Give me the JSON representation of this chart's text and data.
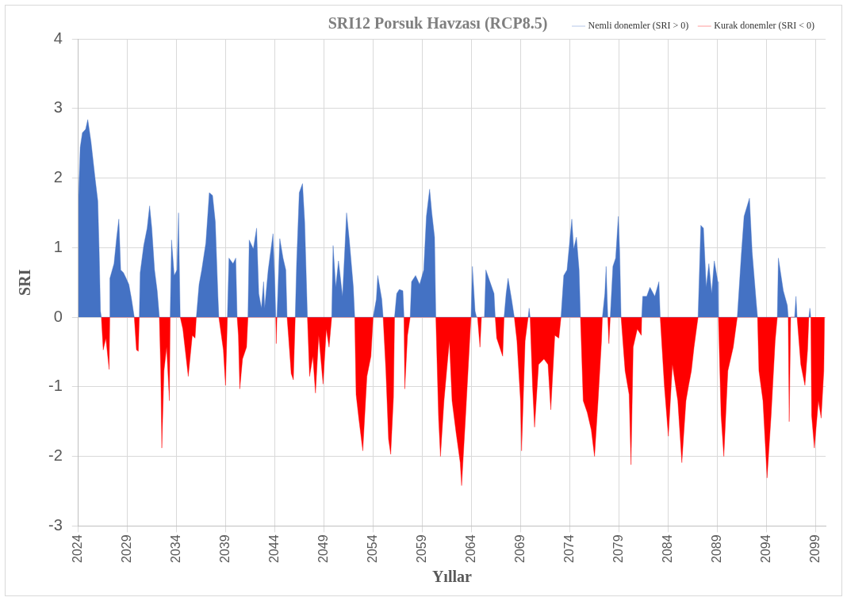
{
  "chart_data": {
    "type": "area",
    "title": "SRI12 Porsuk Havzası (RCP8.5)",
    "xlabel": "Yıllar",
    "ylabel": "SRI",
    "xlim": [
      2024,
      2100
    ],
    "xticks": [
      2024,
      2029,
      2034,
      2039,
      2044,
      2049,
      2054,
      2059,
      2064,
      2069,
      2074,
      2079,
      2084,
      2089,
      2094,
      2099
    ],
    "ylim": [
      -3,
      4
    ],
    "yticks": [
      -3,
      -2,
      -1,
      0,
      1,
      2,
      3,
      4
    ],
    "grid": true,
    "legend": "top right",
    "series": [
      {
        "name": "Nemli donemler (SRI > 0)",
        "color": "#4472c4",
        "x": [
          2024.02,
          2024.19,
          2024.41,
          2024.74,
          2024.96,
          2025.29,
          2025.7,
          2025.98,
          2026.12,
          2026.25,
          2026.34,
          2027.2,
          2027.21,
          2027.63,
          2027.9,
          2028.12,
          2028.31,
          2028.59,
          2028.86,
          2029.14,
          2029.41,
          2029.69,
          2030.2,
          2030.29,
          2030.65,
          2031.0,
          2031.25,
          2031.47,
          2031.75,
          2032.02,
          2032.24,
          2033.34,
          2033.48,
          2033.75,
          2034.03,
          2034.19,
          2034.3,
          2034.36,
          2036.0,
          2036.28,
          2036.55,
          2036.97,
          2037.32,
          2037.65,
          2037.93,
          2038.2,
          2038.29,
          2039.16,
          2039.32,
          2039.73,
          2040.01,
          2040.15,
          2041.25,
          2041.38,
          2041.8,
          2042.13,
          2042.35,
          2042.62,
          2042.84,
          2042.95,
          2043.31,
          2043.8,
          2044.0,
          2044.08,
          2044.2,
          2044.49,
          2044.82,
          2045.1,
          2045.23,
          2046.06,
          2046.2,
          2046.47,
          2046.8,
          2047.02,
          2047.24,
          2047.3,
          2049.77,
          2049.91,
          2050.18,
          2050.46,
          2050.87,
          2051.15,
          2051.28,
          2051.56,
          2051.97,
          2052.11,
          2053.98,
          2054.31,
          2054.45,
          2054.86,
          2055.0,
          2056.16,
          2056.38,
          2056.65,
          2057.01,
          2057.12,
          2057.75,
          2057.89,
          2058.3,
          2058.71,
          2059.13,
          2059.4,
          2059.73,
          2059.95,
          2060.23,
          2060.36,
          2063.94,
          2064.08,
          2064.35,
          2064.5,
          2065.3,
          2065.45,
          2065.86,
          2066.28,
          2066.4,
          2067.3,
          2067.51,
          2067.71,
          2068.06,
          2068.34,
          2069.75,
          2069.85,
          2069.95,
          2073.09,
          2073.37,
          2073.7,
          2074.19,
          2074.38,
          2074.66,
          2074.93,
          2075.07,
          2077.3,
          2077.55,
          2077.68,
          2077.85,
          2078.1,
          2078.37,
          2078.65,
          2078.92,
          2079.06,
          2079.2,
          2081.3,
          2081.4,
          2081.81,
          2082.14,
          2082.63,
          2083.05,
          2083.18,
          2087.03,
          2087.31,
          2087.58,
          2087.86,
          2088.13,
          2088.41,
          2088.68,
          2089.04,
          2089.1,
          2091.02,
          2091.43,
          2091.71,
          2092.26,
          2092.53,
          2092.95,
          2093.08,
          2095.09,
          2095.2,
          2095.7,
          2096.11,
          2096.2,
          2096.85,
          2096.99,
          2097.1,
          2098.3,
          2098.4,
          2098.5
        ],
        "values": [
          1.75,
          2.44,
          2.65,
          2.7,
          2.84,
          2.52,
          2.0,
          1.67,
          0.94,
          0.09,
          0,
          0,
          0.56,
          0.77,
          1.15,
          1.41,
          0.68,
          0.64,
          0.56,
          0.47,
          0.26,
          0,
          0,
          0.64,
          1.03,
          1.28,
          1.6,
          1.28,
          0.68,
          0.38,
          0,
          0,
          1.11,
          0.6,
          0.68,
          1.5,
          0.51,
          0,
          0,
          0.47,
          0.68,
          1.07,
          1.79,
          1.75,
          1.37,
          0.3,
          0,
          0,
          0.85,
          0.77,
          0.85,
          0,
          0,
          1.11,
          0.98,
          1.28,
          0.34,
          0.13,
          0.51,
          0.13,
          0.68,
          1.2,
          0.43,
          0,
          0,
          1.13,
          0.85,
          0.68,
          0,
          0,
          0.77,
          1.79,
          1.92,
          1.37,
          0.3,
          0,
          0,
          1.03,
          0.43,
          0.81,
          0.3,
          1.11,
          1.5,
          1.11,
          0.43,
          0,
          0,
          0.26,
          0.6,
          0.26,
          0,
          0,
          0.34,
          0.4,
          0.38,
          0,
          0,
          0.51,
          0.6,
          0.47,
          0.68,
          1.45,
          1.84,
          1.5,
          1.15,
          0,
          0,
          0.73,
          0.09,
          0,
          0,
          0.68,
          0.51,
          0.34,
          0,
          0,
          0.34,
          0.56,
          0.26,
          0,
          0,
          0.13,
          0,
          0,
          0.6,
          0.68,
          1.41,
          0.98,
          1.15,
          0.68,
          0,
          0,
          0.34,
          0.73,
          0,
          0,
          0.73,
          0.85,
          1.45,
          0.94,
          0,
          0,
          0.3,
          0.3,
          0.43,
          0.3,
          0.51,
          0,
          0,
          1.32,
          1.28,
          0.43,
          0.77,
          0.34,
          0.81,
          0.51,
          0,
          0,
          0.9,
          1.45,
          1.71,
          0.94,
          0.21,
          0,
          0,
          0.85,
          0.38,
          0.17,
          0,
          0,
          0.3,
          0,
          0,
          0.13,
          0
        ]
      },
      {
        "name": "Kurak donemler (SRI < 0)",
        "color": "#ff0000",
        "x": [
          2026.34,
          2026.53,
          2026.8,
          2027.13,
          2027.2,
          2029.69,
          2029.91,
          2030.1,
          2030.2,
          2032.24,
          2032.38,
          2032.49,
          2032.71,
          2032.98,
          2033.26,
          2033.34,
          2034.36,
          2034.63,
          2035.18,
          2035.59,
          2035.87,
          2036.0,
          2038.29,
          2038.75,
          2038.97,
          2039.16,
          2040.15,
          2040.28,
          2040.42,
          2040.7,
          2041.11,
          2041.25,
          2044.08,
          2044.13,
          2044.2,
          2045.23,
          2045.37,
          2045.65,
          2045.87,
          2046.06,
          2047.3,
          2047.52,
          2047.85,
          2048.12,
          2048.45,
          2048.89,
          2049.22,
          2049.5,
          2049.77,
          2052.11,
          2052.25,
          2052.52,
          2052.93,
          2053.35,
          2053.76,
          2053.98,
          2055.0,
          2055.28,
          2055.55,
          2055.77,
          2056.05,
          2056.16,
          2057.12,
          2057.2,
          2057.48,
          2057.75,
          2060.36,
          2060.64,
          2060.83,
          2061.19,
          2061.46,
          2061.74,
          2062.01,
          2062.43,
          2062.84,
          2062.98,
          2063.39,
          2063.8,
          2063.94,
          2064.6,
          2064.85,
          2065.0,
          2066.4,
          2066.55,
          2067.16,
          2067.3,
          2068.34,
          2068.61,
          2068.97,
          2069.08,
          2069.44,
          2069.75,
          2069.95,
          2070.2,
          2070.4,
          2070.81,
          2071.36,
          2071.77,
          2072.05,
          2072.46,
          2072.87,
          2073.09,
          2075.07,
          2075.35,
          2075.76,
          2076.17,
          2076.5,
          2076.86,
          2077.21,
          2077.3,
          2077.85,
          2077.96,
          2078.1,
          2079.2,
          2079.61,
          2080.02,
          2080.21,
          2080.43,
          2080.85,
          2081.26,
          2081.3,
          2083.18,
          2083.6,
          2084.01,
          2084.42,
          2084.97,
          2085.38,
          2085.8,
          2086.07,
          2086.35,
          2086.62,
          2087.03,
          2089.1,
          2089.37,
          2089.65,
          2090.06,
          2090.61,
          2091.02,
          2093.08,
          2093.22,
          2093.63,
          2094.05,
          2094.46,
          2094.87,
          2095.09,
          2096.2,
          2096.3,
          2096.45,
          2097.1,
          2097.48,
          2097.9,
          2098.17,
          2098.3,
          2098.5,
          2098.58,
          2098.86,
          2099.27,
          2099.55,
          2099.82,
          2099.9
        ],
        "values": [
          0,
          -0.47,
          -0.3,
          -0.75,
          0,
          0,
          -0.47,
          -0.49,
          0,
          0,
          -0.77,
          -1.88,
          -0.77,
          -0.43,
          -1.2,
          0,
          0,
          -0.17,
          -0.85,
          -0.26,
          -0.3,
          0,
          0,
          -0.47,
          -0.98,
          0,
          0,
          -0.26,
          -1.03,
          -0.6,
          -0.43,
          0,
          0,
          -0.38,
          0,
          0,
          -0.26,
          -0.81,
          -0.9,
          0,
          0,
          -0.85,
          -0.56,
          -1.09,
          -0.26,
          -0.96,
          -0.17,
          -0.43,
          0,
          0,
          -1.11,
          -1.45,
          -1.92,
          -0.85,
          -0.56,
          0,
          0,
          -0.77,
          -1.75,
          -1.97,
          -1.15,
          0,
          0,
          -1.03,
          -0.26,
          0,
          0,
          -1.45,
          -2.0,
          -1.2,
          -0.77,
          -0.34,
          -1.2,
          -1.67,
          -2.09,
          -2.42,
          -1.41,
          -0.34,
          0,
          0,
          -0.43,
          0,
          0,
          -0.3,
          -0.56,
          0,
          0,
          -0.34,
          -1.2,
          -1.92,
          -0.34,
          0,
          0,
          -1.0,
          -1.58,
          -0.68,
          -0.6,
          -0.68,
          -1.33,
          -0.26,
          -0.3,
          0,
          0,
          -1.2,
          -1.37,
          -1.62,
          -2.0,
          -1.2,
          -0.34,
          0,
          0,
          -0.38,
          0,
          0,
          -0.77,
          -1.11,
          -2.12,
          -0.43,
          -0.17,
          -0.26,
          0,
          0,
          -0.98,
          -1.71,
          -0.68,
          -1.2,
          -2.09,
          -1.2,
          -0.98,
          -0.77,
          -0.43,
          0,
          0,
          -1.41,
          -2.0,
          -0.77,
          -0.43,
          0,
          0,
          -0.77,
          -1.2,
          -2.31,
          -1.41,
          -0.34,
          0,
          0,
          -1.5,
          0,
          0,
          -0.68,
          -0.98,
          -0.47,
          0,
          0,
          -1.41,
          -1.88,
          -1.2,
          -1.45,
          -0.77,
          0
        ]
      }
    ]
  }
}
